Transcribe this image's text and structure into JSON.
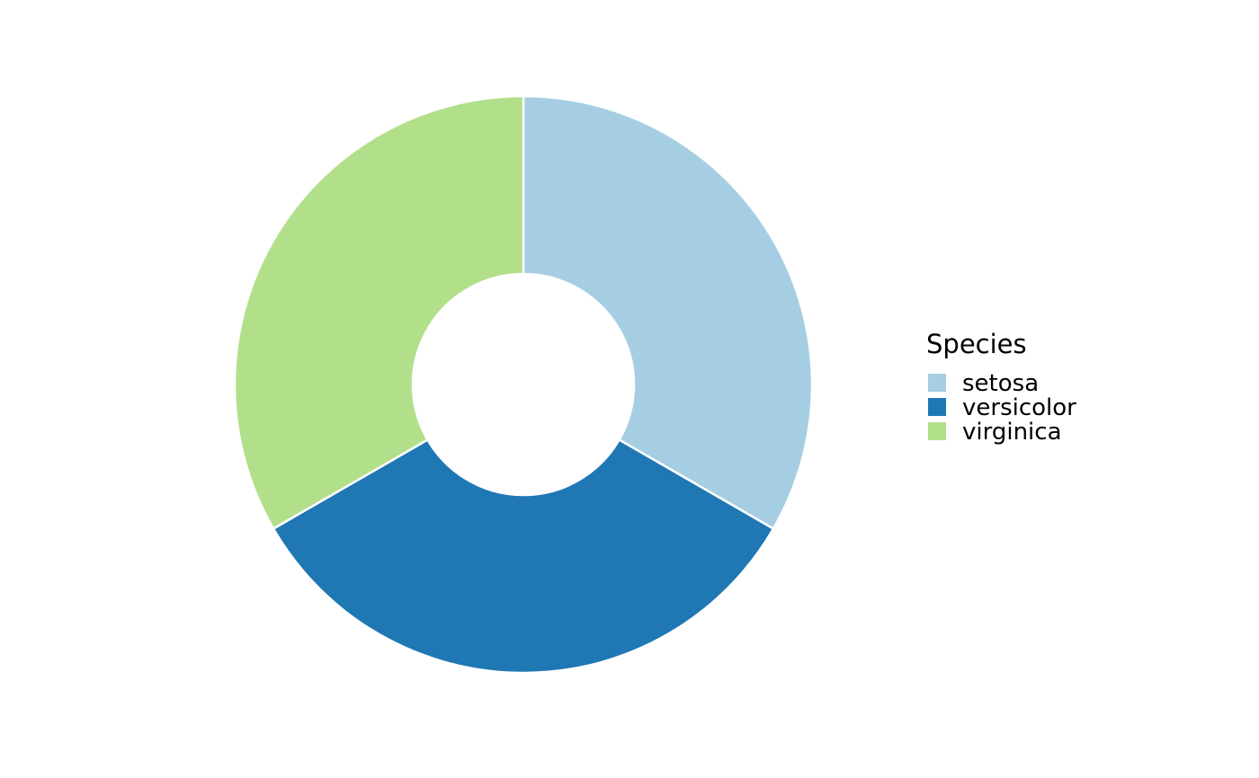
{
  "chart_data": {
    "type": "pie",
    "style": "donut",
    "categories": [
      "setosa",
      "versicolor",
      "virginica"
    ],
    "values": [
      50,
      50,
      50
    ],
    "colors": [
      "#a6cee3",
      "#1f78b4",
      "#b2df8a"
    ],
    "legend": {
      "title": "Species",
      "entries": [
        "setosa",
        "versicolor",
        "virginica"
      ],
      "placement": "right"
    },
    "title": "",
    "xlabel": "",
    "ylabel": ""
  }
}
